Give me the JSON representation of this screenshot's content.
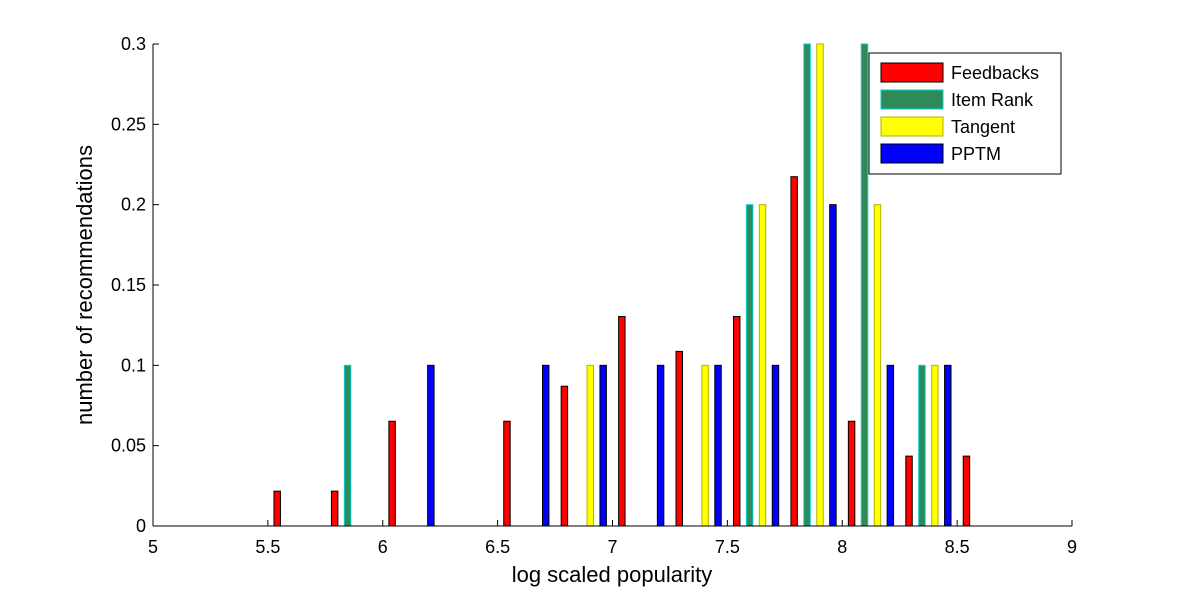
{
  "chart_data": {
    "type": "bar",
    "xlabel": "log scaled popularity",
    "ylabel": "number of recommendations",
    "xlim": [
      5,
      9
    ],
    "ylim": [
      0,
      0.3
    ],
    "xticks": [
      "5",
      "5.5",
      "6",
      "6.5",
      "7",
      "7.5",
      "8",
      "8.5",
      "9"
    ],
    "yticks": [
      "0",
      "0.05",
      "0.1",
      "0.15",
      "0.2",
      "0.25",
      "0.3"
    ],
    "grid": false,
    "legend_position": "top-right",
    "x": [
      5.125,
      5.375,
      5.625,
      5.875,
      6.125,
      6.375,
      6.625,
      6.875,
      7.125,
      7.375,
      7.625,
      7.875,
      8.125,
      8.375,
      8.625,
      8.875
    ],
    "series": [
      {
        "name": "Feedbacks",
        "color": "#ff0000",
        "edge": "#000000",
        "values": [
          0,
          0,
          0.0217,
          0.0217,
          0.0652,
          0,
          0.0652,
          0.087,
          0.1304,
          0.1087,
          0.1304,
          0.2174,
          0.0652,
          0.0435,
          0.0435,
          0
        ]
      },
      {
        "name": "Item Rank",
        "color": "#2e8b57",
        "edge": "#00ced1",
        "values": [
          0,
          0,
          0,
          0.1,
          0,
          0,
          0,
          0,
          0,
          0,
          0.2,
          0.3,
          0.3,
          0.1,
          0,
          0
        ]
      },
      {
        "name": "Tangent",
        "color": "#ffff00",
        "edge": "#b3b300",
        "values": [
          0,
          0,
          0,
          0,
          0,
          0,
          0,
          0.1,
          0,
          0.1,
          0.2,
          0.3,
          0.2,
          0.1,
          0,
          0
        ]
      },
      {
        "name": "PPTM",
        "color": "#0000ff",
        "edge": "#000000",
        "values": [
          0,
          0,
          0,
          0,
          0.1,
          0,
          0.1,
          0.1,
          0.1,
          0.1,
          0.1,
          0.2,
          0.1,
          0.1,
          0,
          0
        ]
      }
    ]
  }
}
